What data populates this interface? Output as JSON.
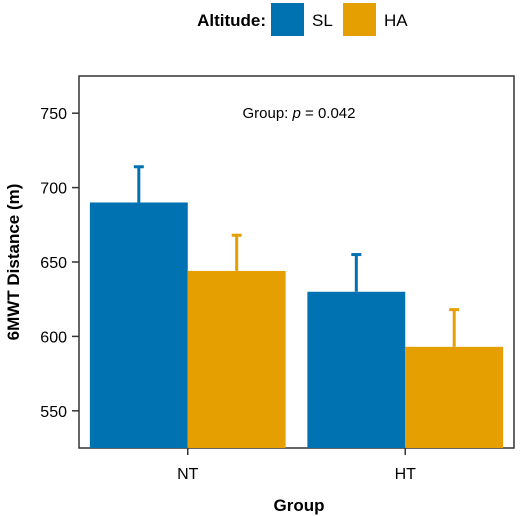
{
  "chart_data": {
    "type": "bar",
    "categories": [
      "NT",
      "HT"
    ],
    "series": [
      {
        "name": "SL",
        "color": "#0072B2",
        "values": [
          690,
          630
        ],
        "error_upper": [
          714,
          655
        ]
      },
      {
        "name": "HA",
        "color": "#E69F00",
        "values": [
          644,
          593
        ],
        "error_upper": [
          668,
          618
        ]
      }
    ],
    "xlabel": "Group",
    "ylabel": "6MWT Distance (m)",
    "ylim": [
      525,
      775
    ],
    "yticks": [
      550,
      600,
      650,
      700,
      750
    ],
    "grid": false,
    "legend": {
      "title": "Altitude:",
      "placement": "top"
    },
    "annotation": {
      "prefix": "Group: ",
      "p_symbol": "p",
      "suffix": " = 0.042"
    }
  }
}
